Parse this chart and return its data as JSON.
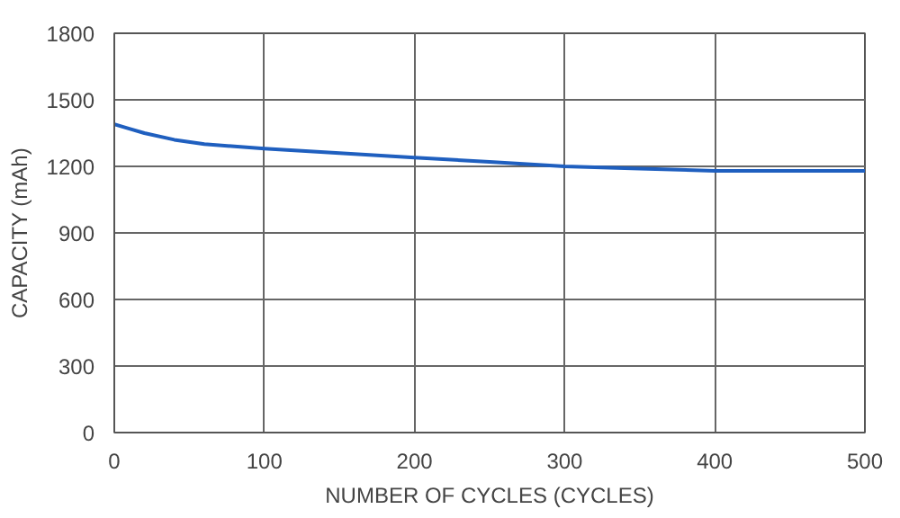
{
  "chart_data": {
    "type": "line",
    "xlabel": "NUMBER OF CYCLES (CYCLES)",
    "ylabel": "CAPACITY (mAh)",
    "x": [
      0,
      10,
      20,
      40,
      60,
      80,
      100,
      150,
      200,
      250,
      300,
      350,
      400,
      450,
      500
    ],
    "series": [
      {
        "color": "#1f5fbf",
        "values": [
          1390,
          1370,
          1350,
          1320,
          1300,
          1290,
          1280,
          1260,
          1240,
          1220,
          1200,
          1190,
          1180,
          1180,
          1180
        ]
      }
    ],
    "xlim": [
      0,
      500
    ],
    "xticks": [
      0,
      100,
      200,
      300,
      400,
      500
    ],
    "ylim": [
      0,
      1800
    ],
    "yticks": [
      0,
      300,
      600,
      900,
      1200,
      1500,
      1800
    ],
    "grid": true,
    "marker": "none",
    "line_style": "solid"
  }
}
